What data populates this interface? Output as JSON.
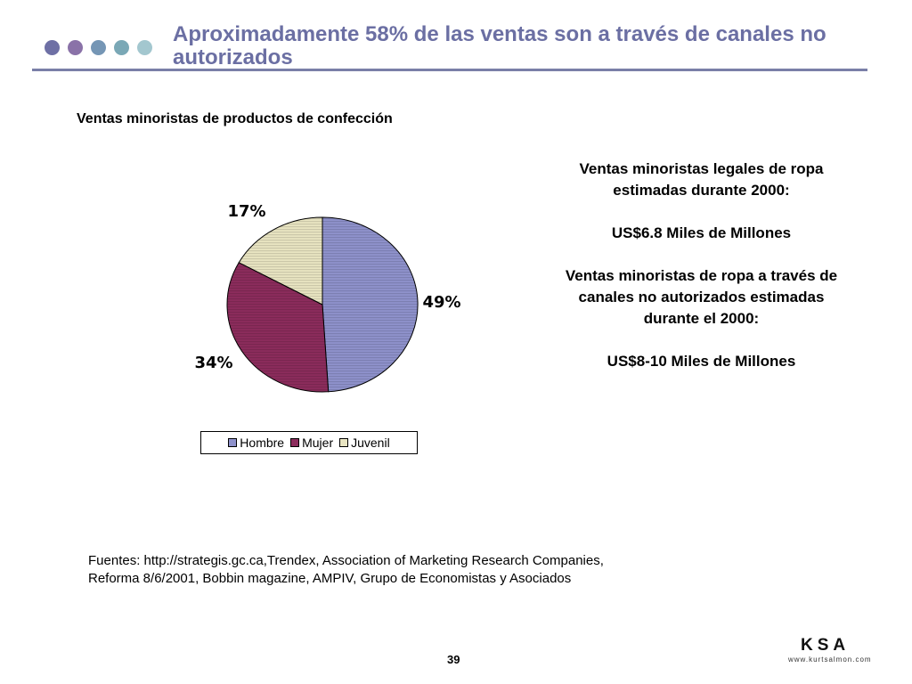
{
  "header": {
    "title_line1": "Aproximadamente 58% de las ventas son a través de canales no",
    "title_line2": "autorizados",
    "dot_colors": [
      "#6e70a5",
      "#8a72a8",
      "#7596b5",
      "#7aa8b6",
      "#a3c7cf"
    ]
  },
  "chart_caption": "Ventas minoristas de productos de confección",
  "chart_data": {
    "type": "pie",
    "title": "",
    "slices": [
      {
        "name": "Hombre",
        "value": 49,
        "label": "49%",
        "color": "#8f92cc"
      },
      {
        "name": "Mujer",
        "value": 34,
        "label": "34%",
        "color": "#8c2c5c"
      },
      {
        "name": "Juvenil",
        "value": 17,
        "label": "17%",
        "color": "#e9e5c2"
      }
    ],
    "legend_position": "bottom"
  },
  "info": {
    "line1": "Ventas minoristas legales de ropa",
    "line2": "estimadas durante 2000:",
    "value1": "US$6.8 Miles de Millones",
    "line3": "Ventas minoristas de ropa a través de",
    "line4": "canales no autorizados estimadas",
    "line5": "durante el 2000:",
    "value2": "US$8-10 Miles de Millones"
  },
  "sources": {
    "line1": "Fuentes: http://strategis.gc.ca,Trendex, Association of Marketing Research Companies,",
    "line2": "Reforma 8/6/2001, Bobbin magazine, AMPIV, Grupo de Economistas y Asociados"
  },
  "page_number": "39",
  "logo": {
    "mark": "KSA",
    "url": "www.kurtsalmon.com"
  }
}
